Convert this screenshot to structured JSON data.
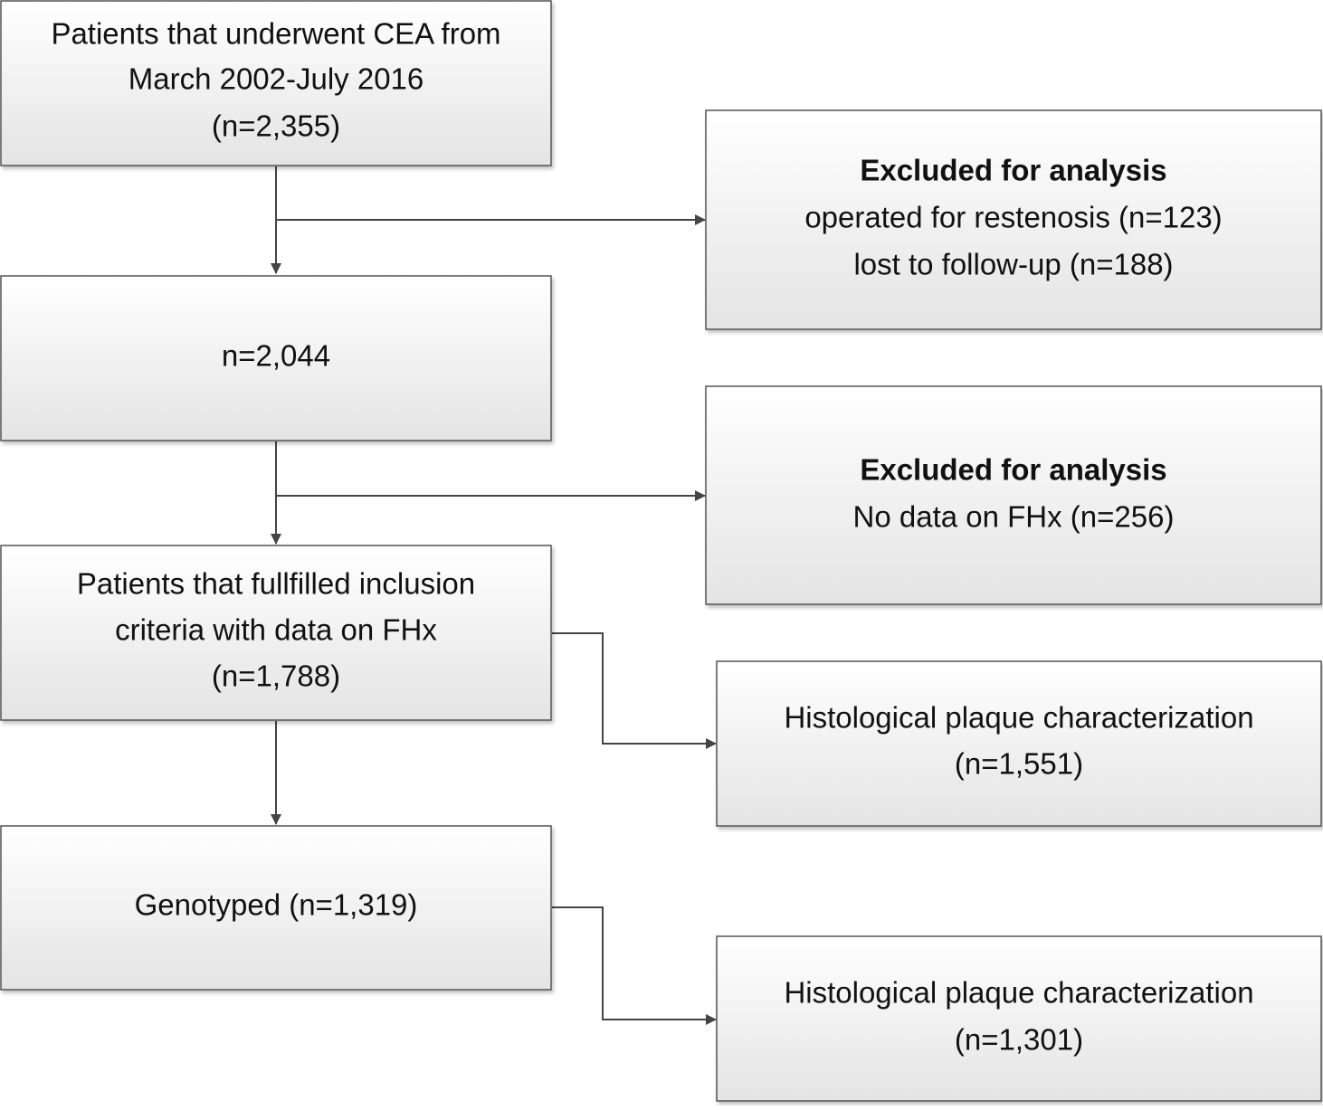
{
  "nodes": [
    {
      "lines": [
        "Patients that underwent CEA from",
        "March 2002-July 2016",
        "(n=2,355)"
      ]
    },
    {
      "lines": [
        "n=2,044"
      ]
    },
    {
      "lines": [
        "Patients that fullfilled inclusion",
        "criteria with data on FHx",
        "(n=1,788)"
      ]
    },
    {
      "lines": [
        "Genotyped (n=1,319)"
      ]
    },
    {
      "title": "Excluded for analysis",
      "lines": [
        "operated for restenosis (n=123)",
        "lost to follow-up (n=188)"
      ]
    },
    {
      "title": "Excluded for analysis",
      "lines": [
        "No data on FHx (n=256)"
      ]
    },
    {
      "lines": [
        "Histological plaque characterization",
        "(n=1,551)"
      ]
    },
    {
      "lines": [
        "Histological plaque characterization",
        "(n=1,301)"
      ]
    }
  ]
}
